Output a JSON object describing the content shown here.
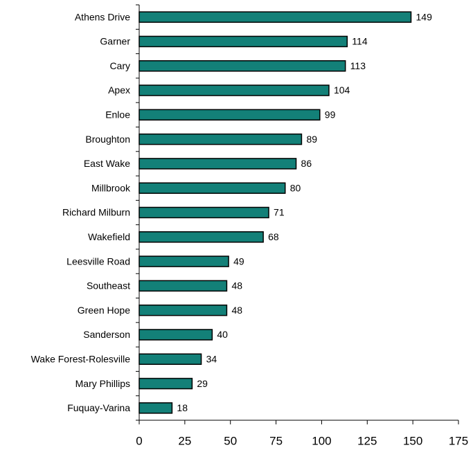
{
  "chart_data": {
    "type": "bar",
    "orientation": "horizontal",
    "categories": [
      "Athens Drive",
      "Garner",
      "Cary",
      "Apex",
      "Enloe",
      "Broughton",
      "East Wake",
      "Millbrook",
      "Richard Milburn",
      "Wakefield",
      "Leesville Road",
      "Southeast",
      "Green Hope",
      "Sanderson",
      "Wake Forest-Rolesville",
      "Mary Phillips",
      "Fuquay-Varina"
    ],
    "values": [
      149,
      114,
      113,
      104,
      99,
      89,
      86,
      80,
      71,
      68,
      49,
      48,
      48,
      40,
      34,
      29,
      18
    ],
    "color": "#138078",
    "xlim": [
      0,
      175
    ],
    "xticks": [
      0,
      25,
      50,
      75,
      100,
      125,
      150,
      175
    ],
    "grid": false
  }
}
